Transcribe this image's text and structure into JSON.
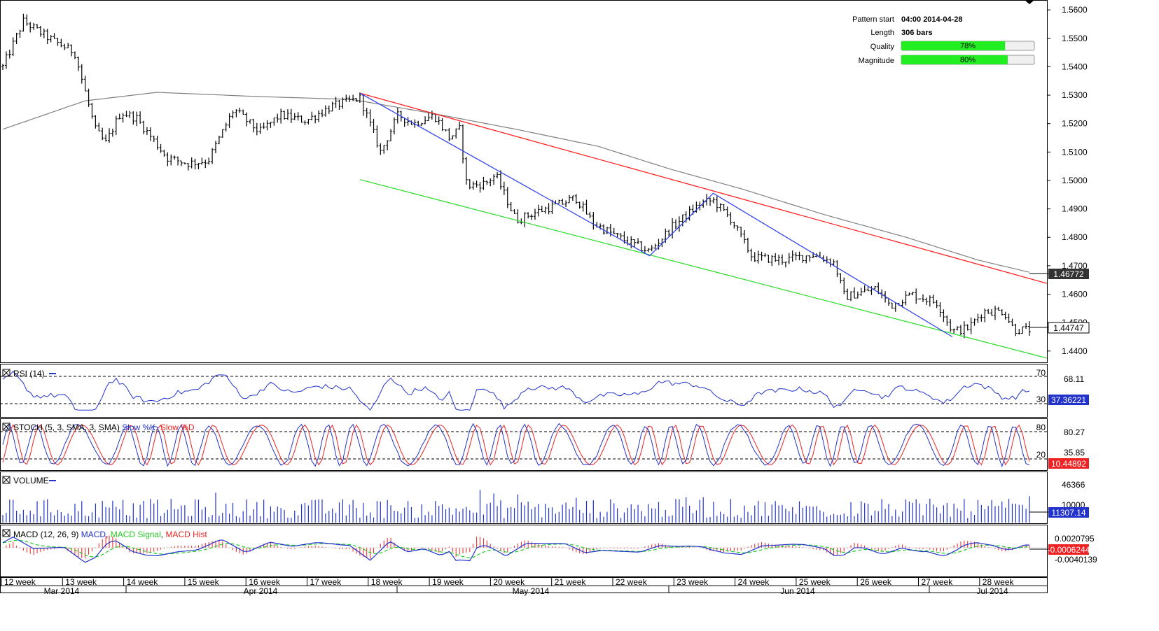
{
  "pattern_info": {
    "pattern_start_label": "Pattern start",
    "pattern_start_value": "04:00 2014-04-28",
    "length_label": "Length",
    "length_value": "306 bars",
    "quality_label": "Quality",
    "quality_value": "78%",
    "quality_fraction": 0.78,
    "magnitude_label": "Magnitude",
    "magnitude_value": "80%",
    "magnitude_fraction": 0.8,
    "bar_fill_color": "#22ee22"
  },
  "chart_data": [
    {
      "type": "ohlc",
      "panel": "price",
      "ylim": [
        1.437,
        1.562
      ],
      "yticks": [
        "1.4400",
        "1.4500",
        "1.4600",
        "1.4700",
        "1.4800",
        "1.4900",
        "1.5000",
        "1.5100",
        "1.5200",
        "1.5300",
        "1.5400",
        "1.5500",
        "1.5600"
      ],
      "moving_average_color": "#808080",
      "last_ma_badge": "1.46772",
      "last_price_badge": "1.44747",
      "pattern_lines": {
        "resistance": {
          "color": "#ff2222",
          "from": {
            "bar": 0.348,
            "price": 1.5307
          },
          "to": {
            "bar": 1.0,
            "price": 1.4638
          }
        },
        "support": {
          "color": "#33dd33",
          "from": {
            "bar": 0.348,
            "price": 1.5003
          },
          "to": {
            "bar": 1.0,
            "price": 1.4375
          }
        },
        "zigzag_color": "#3344ee",
        "zigzag": [
          {
            "bar": 0.348,
            "price": 1.5307
          },
          {
            "bar": 0.63,
            "price": 1.4735
          },
          {
            "bar": 0.692,
            "price": 1.4955
          },
          {
            "bar": 0.925,
            "price": 1.445
          }
        ]
      },
      "anchors": [
        {
          "bar": 0.0,
          "price": 1.54
        },
        {
          "bar": 0.02,
          "price": 1.556
        },
        {
          "bar": 0.045,
          "price": 1.55
        },
        {
          "bar": 0.07,
          "price": 1.545
        },
        {
          "bar": 0.09,
          "price": 1.518
        },
        {
          "bar": 0.1,
          "price": 1.513
        },
        {
          "bar": 0.115,
          "price": 1.524
        },
        {
          "bar": 0.13,
          "price": 1.522
        },
        {
          "bar": 0.16,
          "price": 1.508
        },
        {
          "bar": 0.18,
          "price": 1.506
        },
        {
          "bar": 0.2,
          "price": 1.507
        },
        {
          "bar": 0.225,
          "price": 1.525
        },
        {
          "bar": 0.25,
          "price": 1.517
        },
        {
          "bar": 0.27,
          "price": 1.523
        },
        {
          "bar": 0.295,
          "price": 1.521
        },
        {
          "bar": 0.32,
          "price": 1.526
        },
        {
          "bar": 0.348,
          "price": 1.529
        },
        {
          "bar": 0.368,
          "price": 1.51
        },
        {
          "bar": 0.385,
          "price": 1.523
        },
        {
          "bar": 0.4,
          "price": 1.52
        },
        {
          "bar": 0.42,
          "price": 1.523
        },
        {
          "bar": 0.435,
          "price": 1.515
        },
        {
          "bar": 0.445,
          "price": 1.518
        },
        {
          "bar": 0.452,
          "price": 1.498
        },
        {
          "bar": 0.47,
          "price": 1.499
        },
        {
          "bar": 0.48,
          "price": 1.502
        },
        {
          "bar": 0.5,
          "price": 1.486
        },
        {
          "bar": 0.52,
          "price": 1.489
        },
        {
          "bar": 0.545,
          "price": 1.492
        },
        {
          "bar": 0.558,
          "price": 1.494
        },
        {
          "bar": 0.575,
          "price": 1.485
        },
        {
          "bar": 0.6,
          "price": 1.48
        },
        {
          "bar": 0.63,
          "price": 1.475
        },
        {
          "bar": 0.65,
          "price": 1.483
        },
        {
          "bar": 0.68,
          "price": 1.492
        },
        {
          "bar": 0.692,
          "price": 1.493
        },
        {
          "bar": 0.71,
          "price": 1.486
        },
        {
          "bar": 0.73,
          "price": 1.473
        },
        {
          "bar": 0.76,
          "price": 1.472
        },
        {
          "bar": 0.79,
          "price": 1.474
        },
        {
          "bar": 0.81,
          "price": 1.471
        },
        {
          "bar": 0.82,
          "price": 1.459
        },
        {
          "bar": 0.85,
          "price": 1.462
        },
        {
          "bar": 0.865,
          "price": 1.456
        },
        {
          "bar": 0.885,
          "price": 1.46
        },
        {
          "bar": 0.91,
          "price": 1.457
        },
        {
          "bar": 0.925,
          "price": 1.447
        },
        {
          "bar": 0.94,
          "price": 1.448
        },
        {
          "bar": 0.955,
          "price": 1.454
        },
        {
          "bar": 0.975,
          "price": 1.454
        },
        {
          "bar": 0.985,
          "price": 1.4475
        },
        {
          "bar": 1.0,
          "price": 1.4475
        }
      ],
      "ma_anchors": [
        {
          "bar": 0.0,
          "price": 1.518
        },
        {
          "bar": 0.08,
          "price": 1.528
        },
        {
          "bar": 0.15,
          "price": 1.531
        },
        {
          "bar": 0.25,
          "price": 1.5295
        },
        {
          "bar": 0.34,
          "price": 1.5285
        },
        {
          "bar": 0.42,
          "price": 1.5235
        },
        {
          "bar": 0.5,
          "price": 1.518
        },
        {
          "bar": 0.58,
          "price": 1.512
        },
        {
          "bar": 0.65,
          "price": 1.504
        },
        {
          "bar": 0.72,
          "price": 1.497
        },
        {
          "bar": 0.8,
          "price": 1.488
        },
        {
          "bar": 0.88,
          "price": 1.48
        },
        {
          "bar": 0.95,
          "price": 1.472
        },
        {
          "bar": 1.0,
          "price": 1.4677
        }
      ]
    },
    {
      "type": "line",
      "panel": "rsi",
      "title": "RSI (14)",
      "ylim": [
        0,
        100
      ],
      "levels": [
        "70",
        "30"
      ],
      "value_badge_upper": "68.11",
      "last_value": "37.36221",
      "color": "#2233cc"
    },
    {
      "type": "line",
      "panel": "stoch",
      "title": "STOCH (5, 3, SMA, 3, SMA)",
      "series": [
        {
          "name": "Slow %K",
          "color": "#2233cc"
        },
        {
          "name": "Slow %D",
          "color": "#ee2222"
        }
      ],
      "ylim": [
        0,
        100
      ],
      "levels": [
        "80",
        "20"
      ],
      "value_badge_upper": "80.27",
      "value_badge_mid": "35.85",
      "last_value": "10.44892"
    },
    {
      "type": "bar",
      "panel": "volume",
      "title": "VOLUME",
      "color": "#2233cc",
      "tick_upper": "46366",
      "tick_lower": "10000",
      "last_value": "11307.14"
    },
    {
      "type": "line",
      "panel": "macd",
      "title": "MACD (12, 26, 9)",
      "series": [
        {
          "name": "MACD",
          "color": "#2233cc"
        },
        {
          "name": "MACD Signal",
          "color": "#22cc22"
        },
        {
          "name": "MACD Hist",
          "color": "#ee2222"
        }
      ],
      "tick_upper": "0.0020795",
      "tick_lower": "-0.0040139",
      "last_value": "-0.0006244"
    }
  ],
  "time_axis": {
    "weeks": [
      "12 week",
      "13 week",
      "14 week",
      "15 week",
      "16 week",
      "17 week",
      "18 week",
      "19 week",
      "20 week",
      "21 week",
      "22 week",
      "23 week",
      "24 week",
      "25 week",
      "26 week",
      "27 week",
      "28 week"
    ],
    "months": [
      "Mar 2014",
      "Apr 2014",
      "May 2014",
      "Jun 2014",
      "Jul 2014"
    ]
  },
  "colors": {
    "rsi_badge_bg": "#2233cc",
    "stoch_badge_bg": "#ee2222",
    "volume_badge_bg": "#2233cc",
    "macd_badge_bg": "#ee2222",
    "price_badge_bg": "#333333"
  }
}
